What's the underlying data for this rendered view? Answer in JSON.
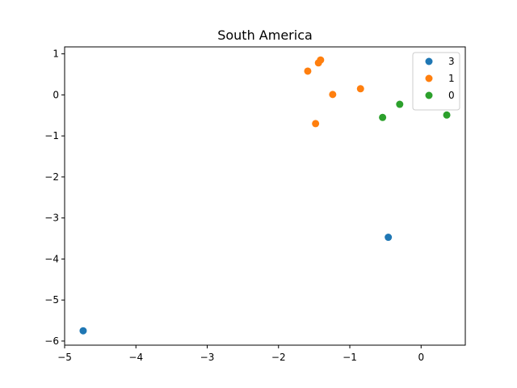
{
  "chart_data": {
    "type": "scatter",
    "title": "South America",
    "xlabel": "",
    "ylabel": "",
    "xlim": [
      -5.0,
      0.62
    ],
    "ylim": [
      -6.1,
      1.17
    ],
    "xticks": [
      -5,
      -4,
      -3,
      -2,
      -1,
      0
    ],
    "yticks": [
      -6,
      -5,
      -4,
      -3,
      -2,
      -1,
      0,
      1
    ],
    "grid": false,
    "legend_position": "top-right",
    "series": [
      {
        "name": "3",
        "color": "#1f77b4",
        "points": [
          [
            -4.74,
            -5.75
          ],
          [
            -0.46,
            -3.47
          ]
        ]
      },
      {
        "name": "1",
        "color": "#ff7f0e",
        "points": [
          [
            -1.59,
            0.58
          ],
          [
            -1.44,
            0.78
          ],
          [
            -1.41,
            0.85
          ],
          [
            -0.85,
            0.15
          ],
          [
            -1.24,
            0.01
          ],
          [
            -1.48,
            -0.7
          ]
        ]
      },
      {
        "name": "0",
        "color": "#2ca02c",
        "points": [
          [
            -0.3,
            -0.23
          ],
          [
            -0.54,
            -0.55
          ],
          [
            0.36,
            -0.49
          ]
        ]
      }
    ]
  }
}
